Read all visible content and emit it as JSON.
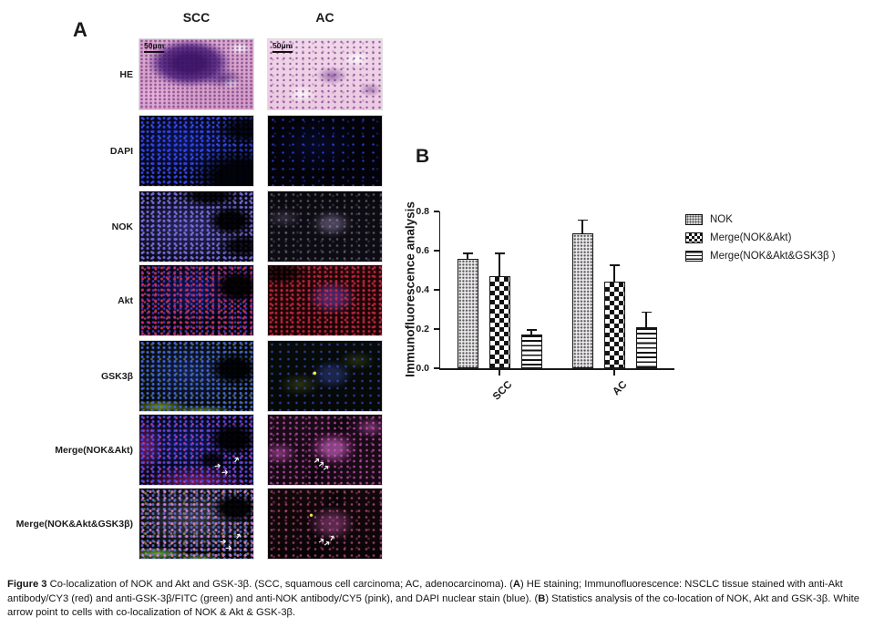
{
  "panelA": {
    "label": "A",
    "columns": [
      "SCC",
      "AC"
    ],
    "rows": [
      "HE",
      "DAPI",
      "NOK",
      "Akt",
      "GSK3β",
      "Merge(NOK&Akt)",
      "Merge(NOK&Akt&GSK3β)"
    ],
    "scale_bar": "50μm"
  },
  "panelB": {
    "label": "B"
  },
  "chart_data": {
    "type": "bar",
    "title": "",
    "xlabel": "",
    "ylabel": "Immunofluorescence analysis",
    "ylim": [
      0,
      0.8
    ],
    "yticks": [
      0.0,
      0.2,
      0.4,
      0.6,
      0.8
    ],
    "grid": false,
    "legend_position": "right",
    "categories": [
      "SCC",
      "AC"
    ],
    "series": [
      {
        "name": "NOK",
        "pattern": "dots",
        "values": [
          0.56,
          0.69
        ],
        "errors": [
          0.03,
          0.07
        ]
      },
      {
        "name": "Merge(NOK&Akt)",
        "pattern": "checker",
        "values": [
          0.47,
          0.44
        ],
        "errors": [
          0.12,
          0.09
        ]
      },
      {
        "name": "Merge(NOK&Akt&GSK3β )",
        "pattern": "hlines",
        "values": [
          0.17,
          0.21
        ],
        "errors": [
          0.03,
          0.08
        ]
      }
    ]
  },
  "caption": {
    "figure_label": "Figure 3",
    "part1": " Co-localization of NOK and Akt and GSK-3β. (SCC, squamous cell carcinoma; AC, adenocarcinoma). (",
    "bold_a": "A",
    "part2": ") HE staining; Immunofluorescence: NSCLC tissue stained with anti-Akt antibody/CY3 (red) and anti-GSK-3β/FITC (green) and anti-NOK antibody/CY5 (pink), and DAPI nuclear stain (blue). (",
    "bold_b": "B",
    "part3": ") Statistics analysis of the co-location of NOK, Akt and GSK-3β. White arrow point to cells with co-localization of NOK & Akt & GSK-3β."
  }
}
